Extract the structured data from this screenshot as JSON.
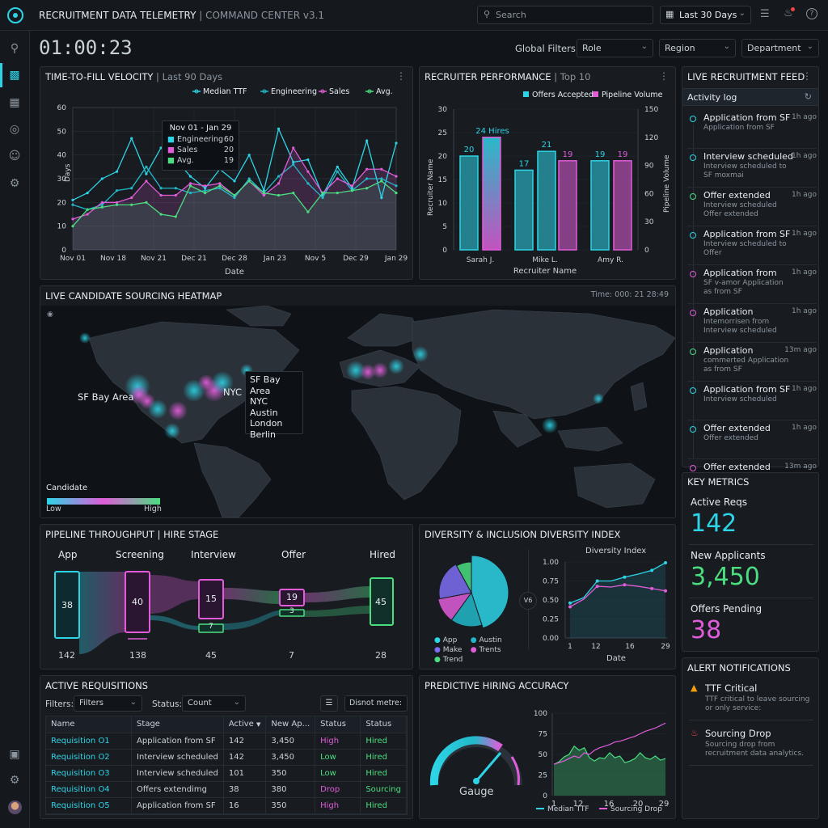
{
  "header": {
    "title": "RECRUITMENT DATA TELEMETRY",
    "subtitle": "COMMAND CENTER v3.1",
    "search_placeholder": "Search",
    "date_range": "Last 30 Days"
  },
  "clock": "01:00:23",
  "filters": {
    "label": "Global Filters:",
    "role": "Role",
    "region": "Region",
    "department": "Department"
  },
  "ttf": {
    "title": "TIME-TO-FILL VELOCITY",
    "range": "Last 90 Days",
    "legend": [
      "Median TTF",
      "Engineering",
      "Sales",
      "Avg."
    ],
    "tooltip": {
      "title": "Nov 01 - Jan 29",
      "rows": [
        {
          "name": "Engineering",
          "value": "60"
        },
        {
          "name": "Sales",
          "value": "20"
        },
        {
          "name": "Avg.",
          "value": "19"
        }
      ]
    },
    "ylabel": "Days",
    "xlabel": "Date"
  },
  "recruiter": {
    "title": "RECRUITER PERFORMANCE",
    "range": "Top 10",
    "legend": [
      "Offers Accepted",
      "Pipeline Volume"
    ],
    "ylabel": "Recruiter Name",
    "y2label": "Pipeline Volume",
    "xlabel": "Recruiter Name",
    "top_label": "24 Hires"
  },
  "feed": {
    "title": "LIVE RECRUITMENT FEED",
    "tab": "Activity log",
    "items": [
      {
        "title": "Application from SF",
        "sub": "Application from SF",
        "time": "1h ago",
        "color": "#2dd4e6"
      },
      {
        "title": "Interview scheduled",
        "sub": "Interview scheduled to SF moxmai",
        "time": "1h ago",
        "color": "#2dd4e6"
      },
      {
        "title": "Offer extended",
        "sub": "Interview scheduled Offer extended",
        "time": "1h ago",
        "color": "#4ade80"
      },
      {
        "title": "Application from SF",
        "sub": "Interview scheduled to Offer",
        "time": "1h ago",
        "color": "#2dd4e6"
      },
      {
        "title": "Application from",
        "sub": "SF v-amor Application as from SF",
        "time": "1h ago",
        "color": "#e05cd9"
      },
      {
        "title": "Application",
        "sub": "Intemorrisen from Interview scheduled",
        "time": "1h ago",
        "color": "#e05cd9"
      },
      {
        "title": "Application",
        "sub": "commerted Application as from SF",
        "time": "13m ago",
        "color": "#4ade80"
      },
      {
        "title": "Application from SF",
        "sub": "Interview scheduled",
        "time": "1h ago",
        "color": "#2dd4e6"
      },
      {
        "title": "Offer extended",
        "sub": "Offer extended",
        "time": "1h ago",
        "color": "#2dd4e6"
      },
      {
        "title": "Offer extended",
        "sub": "",
        "time": "13m ago",
        "color": "#e05cd9"
      }
    ]
  },
  "heatmap": {
    "title": "LIVE CANDIDATE SOURCING HEATMAP",
    "time": "Time: 000: 21 28:49",
    "sf_label": "SF Bay Area",
    "nyc_label": "NYC",
    "popup": [
      "SF Bay Area",
      "NYC",
      "Austin",
      "London",
      "Berlin"
    ],
    "legend_title": "Candidate",
    "legend_low": "Low",
    "legend_high": "High"
  },
  "metrics": {
    "title": "KEY METRICS",
    "items": [
      {
        "label": "Active Reqs",
        "value": "142",
        "color": "#2dd4e6"
      },
      {
        "label": "New Applicants",
        "value": "3,450",
        "color": "#4ade80"
      },
      {
        "label": "Offers Pending",
        "value": "38",
        "color": "#e05cd9"
      }
    ]
  },
  "pipeline": {
    "title": "PIPELINE THROUGHPUT | HIRE STAGE",
    "stages": [
      {
        "name": "App",
        "inner": "38",
        "bottom": "142"
      },
      {
        "name": "Screening",
        "inner": "40",
        "bottom": "138"
      },
      {
        "name": "Interview",
        "inner": "15",
        "bottom": "45"
      },
      {
        "name": "Offer",
        "inner": "19",
        "bottom": "7"
      },
      {
        "name": "Hired",
        "inner": "45",
        "bottom": "28"
      }
    ],
    "small1": "7",
    "small2": "3"
  },
  "diversity": {
    "title": "DIVERSITY & INCLUSION DIVERSITY INDEX",
    "legend": [
      "App",
      "Austin",
      "Make",
      "Trents",
      "Trend"
    ],
    "vs": "V6",
    "line_title": "Diversity Index",
    "xlabel": "Date"
  },
  "alerts": {
    "title": "ALERT NOTIFICATIONS",
    "items": [
      {
        "title": "TTF Critical",
        "sub": "TTF critical to leave sourcing or only service:",
        "color": "#f59e0b"
      },
      {
        "title": "Sourcing Drop",
        "sub": "Sourcing drop from recruitment data analytics.",
        "color": "#ef4444"
      }
    ]
  },
  "reqs": {
    "title": "ACTIVE REQUISITIONS",
    "filters_label": "Filters:",
    "filters_value": "Filters",
    "status_label": "Status:",
    "status_value": "Count",
    "dropdown": "Disnot metre:",
    "columns": [
      "Name",
      "Stage",
      "Active",
      "New Ap...",
      "Status",
      "Status"
    ],
    "rows": [
      {
        "name": "Requisition O1",
        "stage": "Application from SF",
        "active": "142",
        "newap": "3,450",
        "s1": "High",
        "s1c": "#e05cd9",
        "s2": "Hired",
        "s2c": "#4ade80"
      },
      {
        "name": "Requisition O2",
        "stage": "Interview scheduled",
        "active": "142",
        "newap": "3,450",
        "s1": "Low",
        "s1c": "#4ade80",
        "s2": "Hired",
        "s2c": "#4ade80"
      },
      {
        "name": "Requisition O3",
        "stage": "Interview scheduled",
        "active": "101",
        "newap": "350",
        "s1": "Low",
        "s1c": "#4ade80",
        "s2": "Hired",
        "s2c": "#4ade80"
      },
      {
        "name": "Requisition O4",
        "stage": "Offers extendimg",
        "active": "38",
        "newap": "380",
        "s1": "Drop",
        "s1c": "#e05cd9",
        "s2": "Sourcing",
        "s2c": "#4ade80"
      },
      {
        "name": "Requisition O5",
        "stage": "Application from SF",
        "active": "16",
        "newap": "350",
        "s1": "High",
        "s1c": "#e05cd9",
        "s2": "Hired",
        "s2c": "#4ade80"
      }
    ]
  },
  "predictive": {
    "title": "PREDICTIVE HIRING ACCURACY",
    "gauge_label": "Gauge",
    "legend": [
      "Median TTF",
      "Sourcing Drop"
    ]
  },
  "chart_data": [
    {
      "type": "line",
      "title": "TIME-TO-FILL VELOCITY",
      "ylabel": "Days",
      "xlabel": "Date",
      "ylim": [
        0,
        60
      ],
      "xticks": [
        "Nov 01",
        "Nov 18",
        "Nov 21",
        "Dec 21",
        "Dec 28",
        "Jan 23",
        "Nov 5",
        "Dec 29",
        "Jan 29"
      ],
      "series": [
        {
          "name": "Median TTF",
          "color": "#2dd4e6",
          "values": [
            21,
            24,
            30,
            33,
            47,
            32,
            43,
            38,
            31,
            26,
            34,
            29,
            40,
            25,
            51,
            37,
            38,
            23,
            35,
            26,
            46,
            22,
            45
          ]
        },
        {
          "name": "Engineering",
          "color": "#22b8c9",
          "values": [
            19,
            17,
            19,
            25,
            26,
            35,
            26,
            26,
            24,
            25,
            26,
            22,
            30,
            24,
            31,
            36,
            28,
            22,
            33,
            25,
            30,
            30,
            27
          ]
        },
        {
          "name": "Sales",
          "color": "#e05cd9",
          "values": [
            13,
            15,
            20,
            20,
            22,
            29,
            23,
            23,
            28,
            27,
            28,
            23,
            29,
            23,
            28,
            43,
            33,
            24,
            30,
            27,
            34,
            34,
            31
          ]
        },
        {
          "name": "Avg.",
          "color": "#4ade80",
          "values": [
            10,
            17,
            18,
            19,
            19,
            20,
            15,
            14,
            27,
            24,
            27,
            23,
            29,
            24,
            23,
            24,
            16,
            24,
            24,
            25,
            26,
            29,
            24
          ]
        }
      ]
    },
    {
      "type": "bar",
      "title": "RECRUITER PERFORMANCE",
      "xlabel": "Recruiter Name",
      "categories": [
        "Sarah J.",
        "Mike L.",
        "Amy R."
      ],
      "ylim": [
        0,
        30
      ],
      "y2lim": [
        0,
        150
      ],
      "series": [
        {
          "name": "Offers Accepted",
          "color": "#2dd4e6",
          "values": [
            20,
            17,
            19
          ]
        },
        {
          "name": "Pipeline Volume",
          "color": "#e05cd9",
          "values": [
            24,
            21,
            19
          ]
        },
        {
          "name": "",
          "color": "#2dd4e6",
          "values": [
            null,
            null,
            null
          ]
        }
      ],
      "extra": {
        "sarah_second": 24,
        "mike_second": 21,
        "mike_first_pink": 19,
        "amy_pink": 19
      }
    },
    {
      "type": "pie",
      "title": "DIVERSITY INDEX",
      "slices": [
        {
          "label": "App",
          "value": 45,
          "color": "#2dd4e6"
        },
        {
          "label": "Make",
          "value": 20,
          "color": "#7c6df2"
        },
        {
          "label": "Austin",
          "value": 15,
          "color": "#22b8c9"
        },
        {
          "label": "Trents",
          "value": 12,
          "color": "#e05cd9"
        },
        {
          "label": "Trend",
          "value": 8,
          "color": "#4ade80"
        }
      ]
    },
    {
      "type": "line",
      "title": "Diversity Index",
      "xlabel": "Date",
      "ylim": [
        0,
        1
      ],
      "xticks": [
        "1",
        "12",
        "16",
        "29"
      ],
      "series": [
        {
          "name": "",
          "color": "#2dd4e6",
          "values": [
            0.46,
            0.53,
            0.75,
            0.75,
            0.8,
            0.84,
            0.89,
            0.99
          ]
        },
        {
          "name": "",
          "color": "#e05cd9",
          "values": [
            0.41,
            0.51,
            0.68,
            0.67,
            0.7,
            0.68,
            0.65,
            0.62
          ]
        }
      ]
    },
    {
      "type": "area",
      "title": "PREDICTIVE HIRING ACCURACY",
      "ylim": [
        0,
        100
      ],
      "xticks": [
        "1",
        "12",
        "16",
        "20",
        "29"
      ],
      "series": [
        {
          "name": "Median TTF",
          "color": "#4ade80",
          "values": [
            38,
            41,
            47,
            50,
            60,
            55,
            58,
            46,
            42,
            46,
            45,
            52,
            46,
            48,
            40,
            42,
            45,
            52,
            46,
            44,
            48,
            43,
            45
          ]
        },
        {
          "name": "Sourcing Drop",
          "color": "#e05cd9",
          "values": [
            38,
            40,
            42,
            45,
            48,
            46,
            52,
            50,
            55,
            58,
            60,
            62,
            65,
            66,
            68,
            70,
            72,
            75,
            78,
            80,
            82,
            85,
            88
          ]
        }
      ]
    }
  ]
}
